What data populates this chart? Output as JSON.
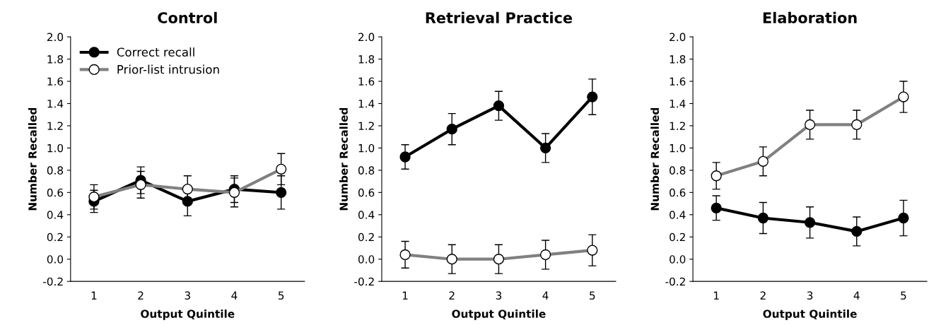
{
  "chart_data": [
    {
      "type": "line",
      "title": "Control",
      "xlabel": "Output Quintile",
      "ylabel": "Number Recalled",
      "categories": [
        "1",
        "2",
        "3",
        "4",
        "5"
      ],
      "ylim": [
        -0.2,
        2.0
      ],
      "yticks": [
        {
          "value": -0.2,
          "label": "-0.2"
        },
        {
          "value": 0,
          "label": "0.0"
        },
        0.2,
        0.4,
        0.6,
        0.8,
        {
          "value": 1,
          "label": "1.0"
        },
        1.2,
        1.4,
        1.6,
        1.8,
        {
          "value": 2,
          "label": "2.0"
        }
      ],
      "marker": "circle",
      "legend": "top left",
      "grid": false,
      "series": [
        {
          "name": "Correct recall",
          "color": "#000000",
          "values": [
            0.52,
            0.71,
            0.52,
            0.63,
            0.6
          ],
          "errors": [
            0.1,
            0.12,
            0.13,
            0.12,
            0.15
          ]
        },
        {
          "name": "Prior-list intrusion",
          "color": "#808080",
          "values": [
            0.56,
            0.67,
            0.63,
            0.6,
            0.81
          ],
          "errors": [
            0.11,
            0.12,
            0.12,
            0.13,
            0.14
          ]
        }
      ]
    },
    {
      "type": "line",
      "title": "Retrieval Practice",
      "xlabel": "Output Quintile",
      "ylabel": "Number Recalled",
      "categories": [
        "1",
        "2",
        "3",
        "4",
        "5"
      ],
      "ylim": [
        -0.2,
        2.0
      ],
      "yticks": [
        {
          "value": -0.2,
          "label": "-0.2"
        },
        {
          "value": 0,
          "label": "0.0"
        },
        0.2,
        0.4,
        0.6,
        0.8,
        {
          "value": 1,
          "label": "1.0"
        },
        1.2,
        1.4,
        1.6,
        1.8,
        {
          "value": 2,
          "label": "2.0"
        }
      ],
      "marker": "circle",
      "grid": false,
      "series": [
        {
          "color": "#000000",
          "values": [
            0.92,
            1.17,
            1.38,
            1.0,
            1.46
          ],
          "errors": [
            0.11,
            0.14,
            0.13,
            0.13,
            0.16
          ]
        },
        {
          "color": "#808080",
          "values": [
            0.04,
            0.0,
            0.0,
            0.04,
            0.08
          ],
          "errors": [
            0.12,
            0.13,
            0.13,
            0.13,
            0.14
          ]
        }
      ]
    },
    {
      "type": "line",
      "title": "Elaboration",
      "xlabel": "Output Quintile",
      "ylabel": "Number Recalled",
      "categories": [
        "1",
        "2",
        "3",
        "4",
        "5"
      ],
      "ylim": [
        -0.2,
        2.0
      ],
      "yticks": [
        {
          "value": -0.2,
          "label": "-0.2"
        },
        {
          "value": 0,
          "label": "0.0"
        },
        0.2,
        0.4,
        0.6,
        0.8,
        {
          "value": 1,
          "label": "1.0"
        },
        1.2,
        1.4,
        1.6,
        1.8,
        {
          "value": 2,
          "label": "2.0"
        }
      ],
      "marker": "circle",
      "grid": false,
      "series": [
        {
          "color": "#000000",
          "values": [
            0.46,
            0.37,
            0.33,
            0.25,
            0.37
          ],
          "errors": [
            0.11,
            0.14,
            0.14,
            0.13,
            0.16
          ]
        },
        {
          "color": "#808080",
          "values": [
            0.75,
            0.88,
            1.21,
            1.21,
            1.46
          ],
          "errors": [
            0.12,
            0.13,
            0.13,
            0.13,
            0.14
          ]
        }
      ]
    }
  ]
}
